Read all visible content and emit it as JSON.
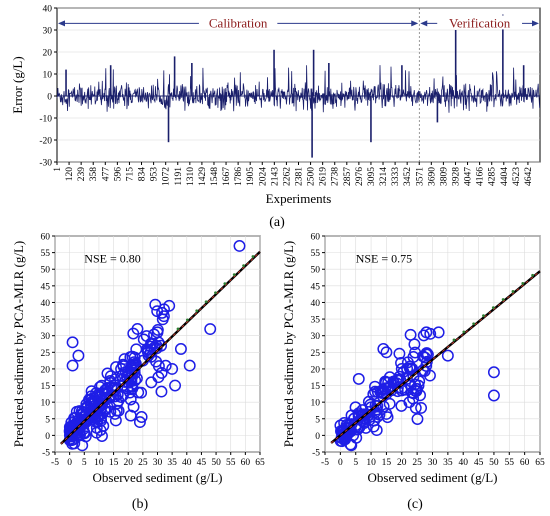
{
  "colors": {
    "series": "#1a1f6b",
    "circle": "#1e1ee6",
    "fit": "#000000",
    "dashed": "#c0392b",
    "dots": "#2e7d32",
    "region": "#8b1a1a"
  },
  "chart_data": [
    {
      "id": "a",
      "type": "line",
      "caption": "(a)",
      "xlabel": "Experiments",
      "ylabel": "Error (g/L)",
      "ylim": [
        -30,
        40
      ],
      "yticks": [
        -30,
        -20,
        -10,
        0,
        10,
        20,
        30,
        40
      ],
      "xlim": [
        1,
        4761
      ],
      "xticks": [
        "1",
        "120",
        "239",
        "358",
        "477",
        "596",
        "715",
        "834",
        "953",
        "1072",
        "1191",
        "1310",
        "1429",
        "1548",
        "1667",
        "1786",
        "1905",
        "2024",
        "2143",
        "2262",
        "2381",
        "2500",
        "2619",
        "2738",
        "2857",
        "2976",
        "3095",
        "3214",
        "3333",
        "3452",
        "3571",
        "3690",
        "3809",
        "3928",
        "4047",
        "4166",
        "4285",
        "4404",
        "4523",
        "4642"
      ],
      "regions": [
        {
          "label": "Calibration",
          "start": 1,
          "end": 3571
        },
        {
          "label": "Verification",
          "start": 3571,
          "end": 4761
        }
      ],
      "spikes": [
        {
          "x": 1100,
          "y": -21
        },
        {
          "x": 1160,
          "y": 18
        },
        {
          "x": 2140,
          "y": 21
        },
        {
          "x": 2515,
          "y": -28
        },
        {
          "x": 2530,
          "y": 21
        },
        {
          "x": 3095,
          "y": -21
        },
        {
          "x": 3930,
          "y": 30
        },
        {
          "x": 4395,
          "y": 37
        },
        {
          "x": 3750,
          "y": -12
        },
        {
          "x": 530,
          "y": 14
        },
        {
          "x": 1330,
          "y": 15
        },
        {
          "x": 2680,
          "y": 15
        },
        {
          "x": 3400,
          "y": 14
        },
        {
          "x": 4600,
          "y": 14
        },
        {
          "x": 90,
          "y": 12
        }
      ]
    },
    {
      "id": "b",
      "type": "scatter",
      "caption": "(b)",
      "xlabel": "Observed sediment (g/L)",
      "ylabel": "Predicted sediment by PCA-MLR (g/L)",
      "annotation": "NSE = 0.80",
      "xlim": [
        -5,
        65
      ],
      "ylim": [
        -5,
        60
      ],
      "xticks": [
        -5,
        0,
        5,
        10,
        15,
        20,
        25,
        30,
        35,
        40,
        45,
        50,
        55,
        60,
        65
      ],
      "yticks": [
        -5,
        0,
        5,
        10,
        15,
        20,
        25,
        30,
        35,
        40,
        45,
        50,
        55,
        60
      ],
      "fit": {
        "slope": 0.85,
        "intercept": 0
      },
      "outliers": [
        {
          "x": 58,
          "y": 57
        },
        {
          "x": 34,
          "y": 39
        },
        {
          "x": 1,
          "y": 28
        },
        {
          "x": 3,
          "y": 24
        },
        {
          "x": 1,
          "y": 21
        },
        {
          "x": 36,
          "y": 15
        },
        {
          "x": 41,
          "y": 21
        },
        {
          "x": 38,
          "y": 26
        },
        {
          "x": 48,
          "y": 32
        },
        {
          "x": 24,
          "y": 4
        },
        {
          "x": 30,
          "y": 31
        },
        {
          "x": 35,
          "y": 20
        }
      ]
    },
    {
      "id": "c",
      "type": "scatter",
      "caption": "(c)",
      "xlabel": "Observed sediment (g/L)",
      "ylabel": "Predicted sediment by PCA-MLR (g/L)",
      "annotation": "NSE = 0.75",
      "xlim": [
        -5,
        65
      ],
      "ylim": [
        -5,
        60
      ],
      "xticks": [
        -5,
        0,
        5,
        10,
        15,
        20,
        25,
        30,
        35,
        40,
        45,
        50,
        55,
        60,
        65
      ],
      "yticks": [
        -5,
        0,
        5,
        10,
        15,
        20,
        25,
        30,
        35,
        40,
        45,
        50,
        55,
        60
      ],
      "fit": {
        "slope": 0.76,
        "intercept": 0
      },
      "outliers": [
        {
          "x": 50,
          "y": 19
        },
        {
          "x": 50,
          "y": 12
        },
        {
          "x": 28,
          "y": 31
        },
        {
          "x": 32,
          "y": 31
        },
        {
          "x": 35,
          "y": 24
        },
        {
          "x": 14,
          "y": 26
        },
        {
          "x": 15,
          "y": 25
        },
        {
          "x": 22,
          "y": 22
        },
        {
          "x": 6,
          "y": 17
        },
        {
          "x": 20,
          "y": 20
        }
      ]
    }
  ]
}
